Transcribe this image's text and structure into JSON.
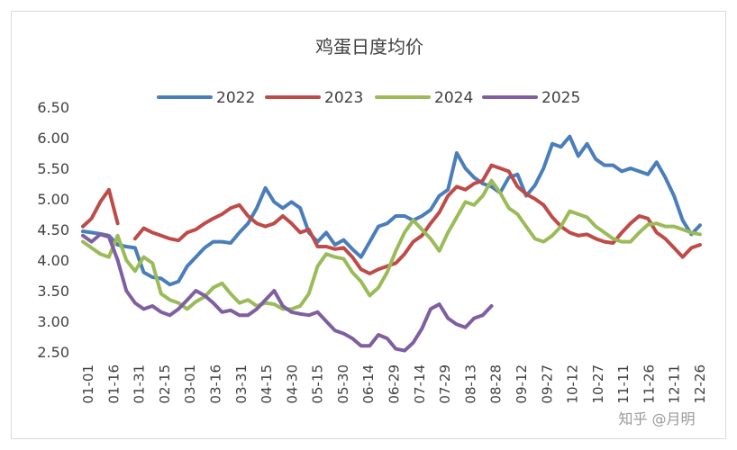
{
  "chart_data": {
    "type": "line",
    "title": "鸡蛋日度均价",
    "xlabel": "",
    "ylabel": "",
    "ylim": [
      2.5,
      6.5
    ],
    "yticks": [
      "6.50",
      "6.00",
      "5.50",
      "5.00",
      "4.50",
      "4.00",
      "3.50",
      "3.00",
      "2.50"
    ],
    "grid": false,
    "legend_position": "top",
    "x_tick_labels": [
      "01-01",
      "01-16",
      "01-31",
      "02-15",
      "03-01",
      "03-16",
      "03-31",
      "04-15",
      "04-30",
      "05-15",
      "05-30",
      "06-14",
      "06-29",
      "07-14",
      "07-29",
      "08-13",
      "08-28",
      "09-12",
      "09-27",
      "10-12",
      "10-27",
      "11-11",
      "11-26",
      "12-11",
      "12-26"
    ],
    "series": [
      {
        "name": "2022",
        "color": "#4a7ebb",
        "values": [
          4.47,
          4.45,
          4.43,
          4.4,
          4.25,
          4.22,
          4.2,
          3.8,
          3.72,
          3.7,
          3.6,
          3.65,
          3.9,
          4.05,
          4.2,
          4.3,
          4.3,
          4.28,
          4.45,
          4.6,
          4.85,
          5.18,
          4.95,
          4.85,
          4.95,
          4.85,
          4.45,
          4.3,
          4.45,
          4.25,
          4.33,
          4.18,
          4.05,
          4.3,
          4.55,
          4.6,
          4.72,
          4.72,
          4.65,
          4.72,
          4.82,
          5.05,
          5.15,
          5.75,
          5.5,
          5.35,
          5.25,
          5.2,
          5.1,
          5.35,
          5.4,
          5.05,
          5.22,
          5.5,
          5.9,
          5.85,
          6.02,
          5.7,
          5.9,
          5.65,
          5.55,
          5.55,
          5.45,
          5.5,
          5.45,
          5.4,
          5.6,
          5.35,
          5.05,
          4.65,
          4.42,
          4.57
        ]
      },
      {
        "name": "2023",
        "color": "#be4b48",
        "values": [
          4.55,
          4.68,
          4.95,
          5.15,
          4.6,
          null,
          4.35,
          4.52,
          4.45,
          4.4,
          4.35,
          4.32,
          4.45,
          4.5,
          4.6,
          4.68,
          4.75,
          4.85,
          4.9,
          4.72,
          4.6,
          4.55,
          4.6,
          4.72,
          4.6,
          4.45,
          4.5,
          4.22,
          4.22,
          4.18,
          4.2,
          4.05,
          3.85,
          3.78,
          3.85,
          3.9,
          3.95,
          4.1,
          4.3,
          4.4,
          4.6,
          4.78,
          5.05,
          5.2,
          5.15,
          5.25,
          5.3,
          5.55,
          5.5,
          5.45,
          5.2,
          5.08,
          5.0,
          4.9,
          4.7,
          4.55,
          4.45,
          4.4,
          4.42,
          4.35,
          4.3,
          4.28,
          4.45,
          4.6,
          4.72,
          4.68,
          4.45,
          4.35,
          4.2,
          4.05,
          4.2,
          4.25
        ]
      },
      {
        "name": "2024",
        "color": "#9bbb59",
        "values": [
          4.3,
          4.2,
          4.1,
          4.05,
          4.4,
          4.0,
          3.82,
          4.05,
          3.95,
          3.45,
          3.35,
          3.3,
          3.2,
          3.32,
          3.4,
          3.55,
          3.62,
          3.45,
          3.3,
          3.35,
          3.25,
          3.3,
          3.28,
          3.2,
          3.2,
          3.25,
          3.45,
          3.9,
          4.1,
          4.05,
          4.02,
          3.8,
          3.65,
          3.42,
          3.55,
          3.8,
          4.15,
          4.45,
          4.65,
          4.5,
          4.35,
          4.15,
          4.45,
          4.7,
          4.95,
          4.9,
          5.05,
          5.3,
          5.1,
          4.85,
          4.75,
          4.55,
          4.35,
          4.3,
          4.4,
          4.55,
          4.8,
          4.75,
          4.7,
          4.55,
          4.45,
          4.35,
          4.3,
          4.3,
          4.45,
          4.58,
          4.6,
          4.55,
          4.55,
          4.5,
          4.45,
          4.42
        ]
      },
      {
        "name": "2025",
        "color": "#7f5fa0",
        "values": [
          4.4,
          4.3,
          4.42,
          4.38,
          4.0,
          3.5,
          3.3,
          3.2,
          3.25,
          3.15,
          3.1,
          3.2,
          3.35,
          3.5,
          3.42,
          3.3,
          3.15,
          3.18,
          3.1,
          3.1,
          3.2,
          3.35,
          3.5,
          3.25,
          3.15,
          3.12,
          3.1,
          3.15,
          3.0,
          2.85,
          2.8,
          2.72,
          2.6,
          2.6,
          2.78,
          2.72,
          2.55,
          2.52,
          2.65,
          2.88,
          3.2,
          3.28,
          3.05,
          2.95,
          2.9,
          3.05,
          3.1,
          3.25
        ]
      }
    ]
  },
  "watermark": "知乎 @月明"
}
